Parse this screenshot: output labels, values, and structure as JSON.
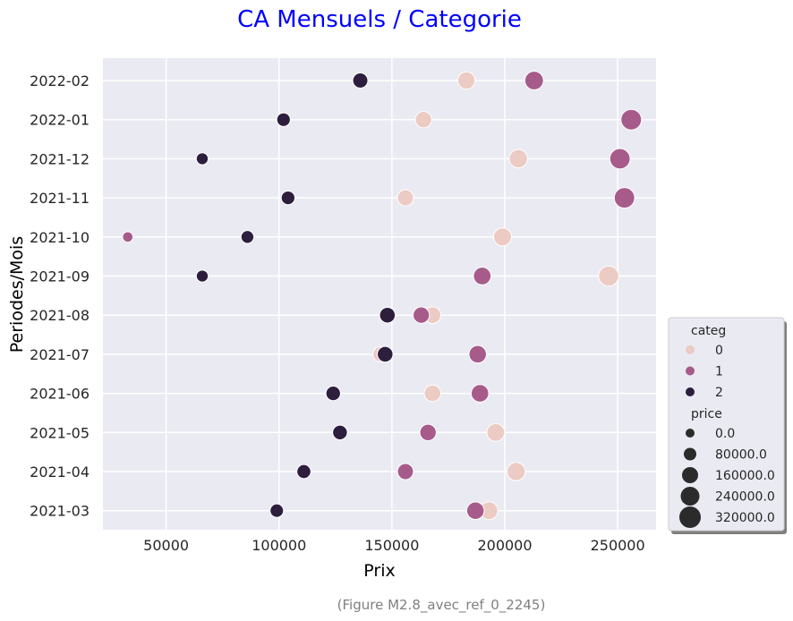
{
  "chart_data": {
    "type": "scatter",
    "title": "CA Mensuels / Categorie",
    "xlabel": "Prix",
    "ylabel": "Periodes/Mois",
    "caption": "(Figure M2.8_avec_ref_0_2245)",
    "xlim": [
      22000,
      267000
    ],
    "x_ticks": [
      50000,
      100000,
      150000,
      200000,
      250000
    ],
    "categories": [
      "2021-03",
      "2021-04",
      "2021-05",
      "2021-06",
      "2021-07",
      "2021-08",
      "2021-09",
      "2021-10",
      "2021-11",
      "2021-12",
      "2022-01",
      "2022-02"
    ],
    "grid": true,
    "legend": {
      "placement": "right",
      "hue_title": "categ",
      "size_title": "price",
      "size_entries": [
        "0.0",
        "80000.0",
        "160000.0",
        "240000.0",
        "320000.0"
      ]
    },
    "series": [
      {
        "name": "0",
        "color": "#eccbc4",
        "x": [
          193000,
          205000,
          196000,
          168000,
          145000,
          168000,
          246000,
          199000,
          156000,
          206000,
          164000,
          183000
        ]
      },
      {
        "name": "1",
        "color": "#a75b8b",
        "x": [
          187000,
          156000,
          166000,
          189000,
          188000,
          163000,
          190000,
          33000,
          253000,
          251000,
          256000,
          213000
        ]
      },
      {
        "name": "2",
        "color": "#2d1e3e",
        "x": [
          99000,
          111000,
          127000,
          124000,
          147000,
          148000,
          66000,
          86000,
          104000,
          66000,
          102000,
          136000
        ]
      }
    ]
  }
}
